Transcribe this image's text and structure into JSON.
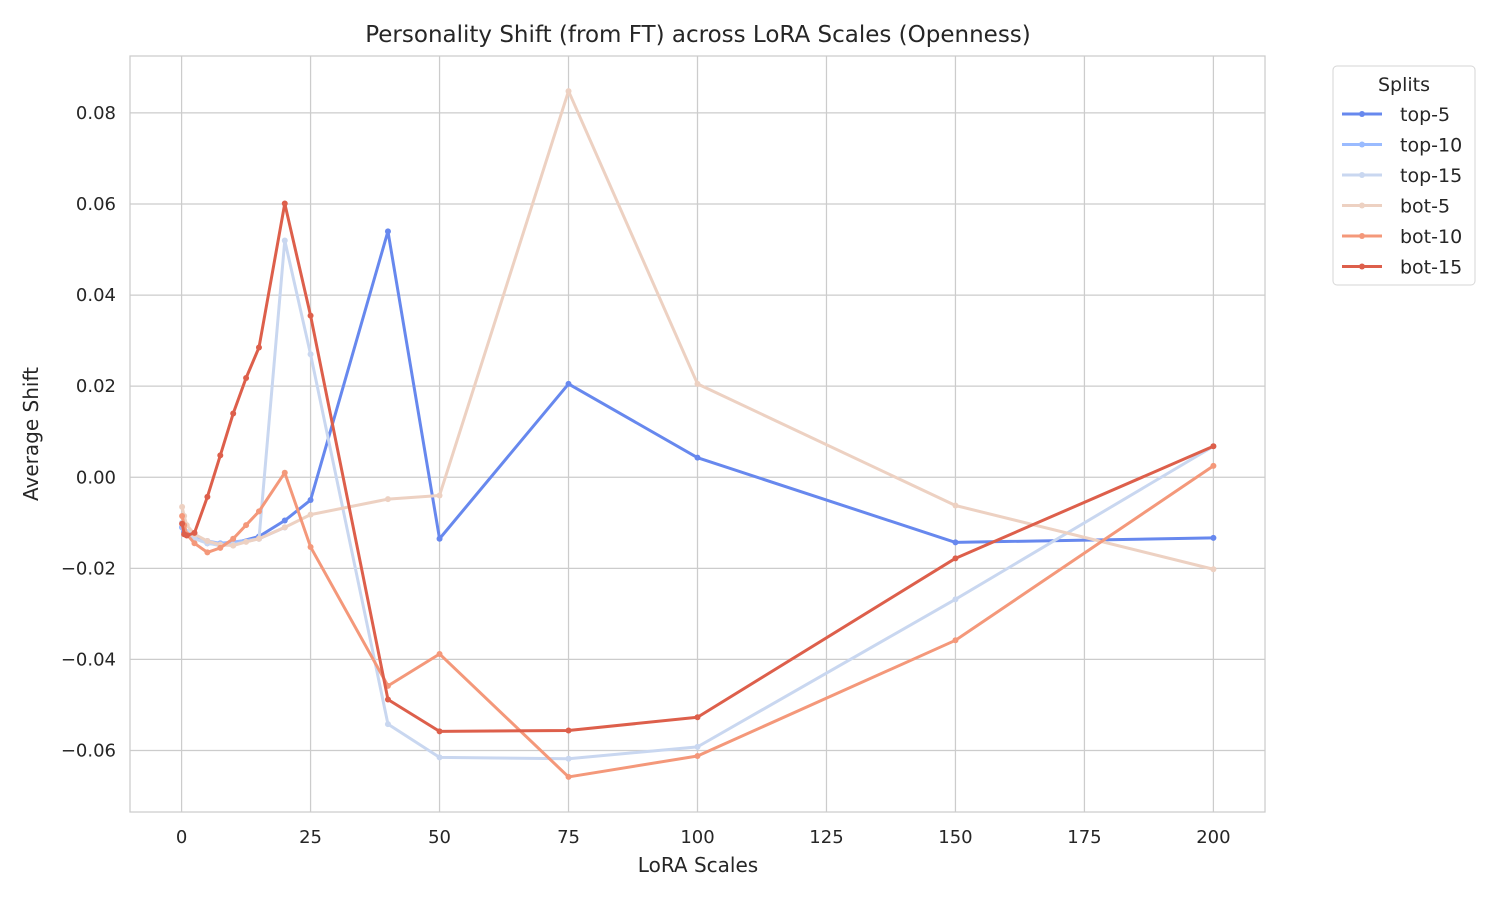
{
  "chart_data": {
    "type": "line",
    "title": "Personality Shift (from FT) across LoRA Scales (Openness)",
    "xlabel": "LoRA Scales",
    "ylabel": "Average Shift",
    "xlim": [
      -10,
      210
    ],
    "ylim": [
      -0.0735,
      0.0925
    ],
    "xticks": [
      0,
      25,
      50,
      75,
      100,
      125,
      150,
      175,
      200
    ],
    "xtick_labels": [
      "0",
      "25",
      "50",
      "75",
      "100",
      "125",
      "150",
      "175",
      "200"
    ],
    "yticks": [
      -0.06,
      -0.04,
      -0.02,
      0.0,
      0.02,
      0.04,
      0.06,
      0.08
    ],
    "ytick_labels": [
      "−0.06",
      "−0.04",
      "−0.02",
      "0.00",
      "0.02",
      "0.04",
      "0.06",
      "0.08"
    ],
    "grid": true,
    "legend": {
      "title": "Splits",
      "placement": "outside-top-right"
    },
    "series": [
      {
        "name": "top-5",
        "color": "#6788ee",
        "x": [
          0.1,
          0.5,
          1,
          2.5,
          5,
          7.5,
          10,
          15,
          20,
          25,
          40,
          50,
          75,
          100,
          150,
          200
        ],
        "y": [
          -0.011,
          -0.012,
          -0.0125,
          -0.0125,
          -0.0145,
          -0.0148,
          -0.0145,
          -0.013,
          -0.0095,
          -0.005,
          0.054,
          -0.0135,
          0.0205,
          0.0043,
          -0.0143,
          -0.0133
        ]
      },
      {
        "name": "top-10",
        "color": "#9abbff",
        "x": [
          0.1,
          0.5,
          1,
          2.5,
          5,
          7.5,
          10,
          15,
          20
        ],
        "y": [
          -0.011,
          -0.0115,
          -0.012,
          -0.013,
          -0.014,
          -0.0145,
          -0.0142,
          -0.0135,
          -0.011
        ]
      },
      {
        "name": "top-15",
        "color": "#c9d7f0",
        "x": [
          0.1,
          0.5,
          1,
          2.5,
          5,
          7.5,
          10,
          15,
          20,
          25,
          40,
          50,
          75,
          100,
          150,
          200
        ],
        "y": [
          -0.01,
          -0.011,
          -0.012,
          -0.0135,
          -0.0145,
          -0.015,
          -0.0148,
          -0.0135,
          0.052,
          0.027,
          -0.0542,
          -0.0615,
          -0.0618,
          -0.0592,
          -0.0268,
          0.0068
        ]
      },
      {
        "name": "bot-5",
        "color": "#edd1c2",
        "x": [
          0.1,
          0.5,
          1,
          2.5,
          5,
          7.5,
          10,
          12.5,
          15,
          20,
          25,
          40,
          50,
          75,
          100,
          150,
          200
        ],
        "y": [
          -0.0065,
          -0.0085,
          -0.0105,
          -0.0125,
          -0.014,
          -0.0148,
          -0.015,
          -0.0142,
          -0.0135,
          -0.011,
          -0.0082,
          -0.0048,
          -0.004,
          0.0848,
          0.0205,
          -0.0062,
          -0.0202
        ]
      },
      {
        "name": "bot-10",
        "color": "#f4987a",
        "x": [
          0.1,
          0.5,
          1,
          2.5,
          5,
          7.5,
          10,
          12.5,
          15,
          20,
          25,
          40,
          50,
          75,
          100,
          150,
          200
        ],
        "y": [
          -0.0085,
          -0.0105,
          -0.0125,
          -0.0145,
          -0.0165,
          -0.0155,
          -0.0135,
          -0.0105,
          -0.0075,
          0.001,
          -0.0153,
          -0.0458,
          -0.0388,
          -0.0658,
          -0.0612,
          -0.0358,
          0.0025
        ]
      },
      {
        "name": "bot-15",
        "color": "#dd5f4b",
        "x": [
          0.1,
          0.5,
          1,
          2.5,
          5,
          7.5,
          10,
          12.5,
          15,
          20,
          25,
          40,
          50,
          75,
          100,
          150,
          200
        ],
        "y": [
          -0.0102,
          -0.0125,
          -0.0128,
          -0.0122,
          -0.0043,
          0.0048,
          0.014,
          0.0218,
          0.0285,
          0.0601,
          0.0355,
          -0.0488,
          -0.0558,
          -0.0556,
          -0.0527,
          -0.0178,
          0.0068
        ]
      }
    ]
  }
}
